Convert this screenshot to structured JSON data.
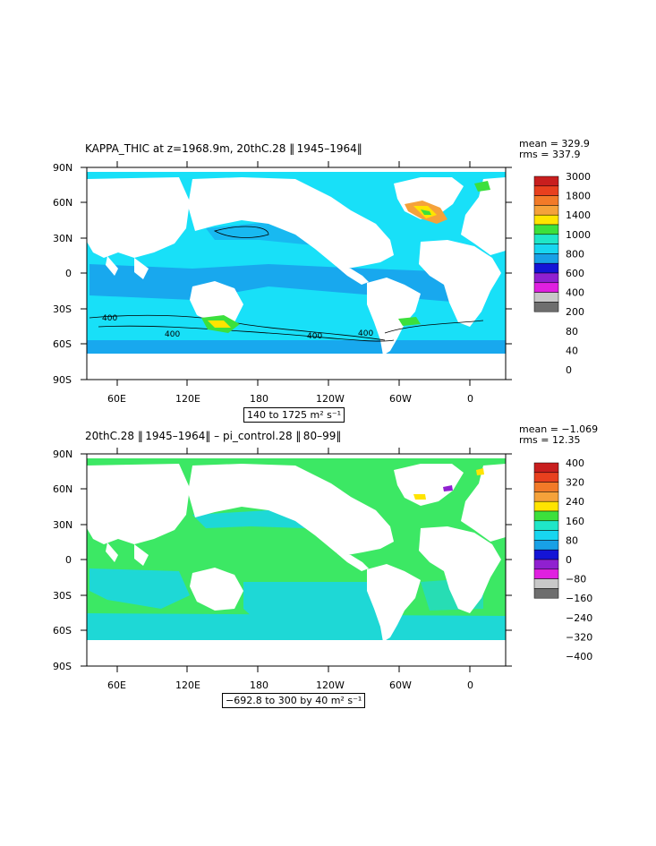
{
  "panels": [
    {
      "title": "KAPPA_THIC at z=1968.9m, 20thC.28 ‖ 1945–1964‖",
      "mean": "mean = 329.9",
      "rms": "rms = 337.9",
      "range": "140 to 1725 m² s⁻¹",
      "colorbar": {
        "levels": [
          "3000",
          "1800",
          "1400",
          "1000",
          "800",
          "600",
          "400",
          "200",
          "80",
          "40",
          "0"
        ],
        "colors": [
          "#c81e1e",
          "#e8401e",
          "#f27a28",
          "#f5a23a",
          "#ffe400",
          "#3ce03c",
          "#1fe6c8",
          "#18d6f0",
          "#18a0e6",
          "#1414d6",
          "#9020d0",
          "#e020e0",
          "#c8c8c8",
          "#6e6e6e"
        ]
      }
    },
    {
      "title": "20thC.28 ‖ 1945–1964‖ – pi_control.28 ‖ 80–99‖",
      "mean": "mean = −1.069",
      "rms": "rms = 12.35",
      "range": "−692.8 to 300 by 40 m² s⁻¹",
      "colorbar": {
        "levels": [
          "400",
          "320",
          "240",
          "160",
          "80",
          "0",
          "−80",
          "−160",
          "−240",
          "−320",
          "−400"
        ],
        "colors": [
          "#c81e1e",
          "#e8401e",
          "#f27a28",
          "#f5a23a",
          "#ffe400",
          "#3ce03c",
          "#1fe6c8",
          "#18d6f0",
          "#18a0e6",
          "#1414d6",
          "#9020d0",
          "#e020e0",
          "#c8c8c8",
          "#6e6e6e"
        ]
      }
    }
  ],
  "axes": {
    "lat_labels": [
      "90N",
      "60N",
      "30N",
      "0",
      "30S",
      "60S",
      "90S"
    ],
    "lon_labels": [
      "60E",
      "120E",
      "180",
      "120W",
      "60W",
      "0"
    ]
  },
  "contour_labels": [
    "400",
    "400",
    "400",
    "400"
  ],
  "map_colors": {
    "top_ocean": "#18e0f8",
    "top_ocean_blue": "#18a8ee",
    "bottom_ocean": "#3ce864",
    "bottom_ocean_cyan": "#1ed8d6",
    "land": "#ffffff"
  }
}
